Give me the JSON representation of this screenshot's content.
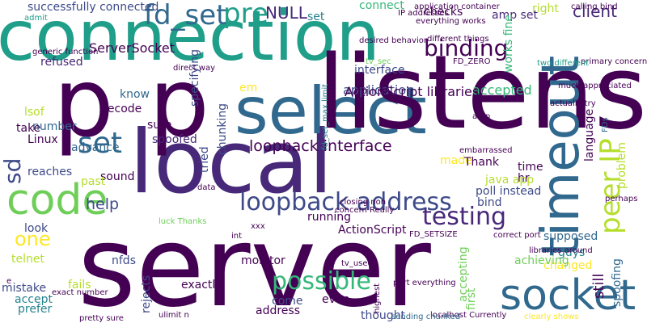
{
  "palette": {
    "dark_purple": "#440154",
    "indigo": "#482878",
    "slate_blue": "#3e4a89",
    "blue": "#31688e",
    "steel_teal": "#26828e",
    "teal": "#1f9e89",
    "green": "#35b779",
    "light_green": "#6ece58",
    "yellow_green": "#b5de2b",
    "yellow": "#fde725"
  },
  "words": [
    "connection",
    "server",
    "local",
    "p",
    "p",
    "select",
    "listens",
    "timeout",
    "code",
    "socket",
    "set",
    "fd_set",
    "pre",
    "binding",
    "testing",
    "loopback address",
    "loopback interface",
    "help",
    "one",
    "possible",
    "peer IP",
    "sd",
    "ServerSocket",
    "chunking",
    "specifying",
    "application",
    "accepted",
    "interface",
    "set",
    "NULL",
    "connect",
    "checks",
    "amp set",
    "client",
    "right",
    "works fine",
    "successfully connected",
    "admit",
    "refused",
    "know",
    "lsof",
    "decode",
    "sure",
    "number",
    "take",
    "Linux",
    "spoofed",
    "advance",
    "reaches",
    "sound",
    "past",
    "tried",
    "look",
    "thought",
    "telnet",
    "nfds",
    "fails",
    "mistake",
    "accept",
    "prefer",
    "rejects",
    "exactly",
    "monitor",
    "address",
    "come",
    "accepting",
    "first",
    "still",
    "guys",
    "changed",
    "supposed",
    "achieving",
    "spoofing",
    "problem",
    "language",
    "poll instead",
    "bind",
    "time",
    "hr",
    "made",
    "Thank",
    "java app",
    "embarrassed",
    "running",
    "ActionScript",
    "em",
    "ActionScript libraries",
    "fd_set_max limit",
    "ulimit n",
    "pretty sure",
    "exact number",
    "localhost Currently",
    "sending chunked",
    "clearly shows",
    "much appreciated",
    "FDs",
    "primary concern",
    "calling bind",
    "application container",
    "IP addresses",
    "desired behavior",
    "everything works",
    "different things",
    "tv_sec",
    "FD_ZERO",
    "two different",
    "generic function",
    "luck Thanks",
    "closing non",
    "concern Really",
    "actually try",
    "correct port",
    "libraries around",
    "FD_SETSIZE",
    "int",
    "tv_usec",
    "port everything",
    "e",
    "even",
    "xxx",
    "data",
    "direct way",
    "highest",
    "perhaps",
    "amp"
  ]
}
